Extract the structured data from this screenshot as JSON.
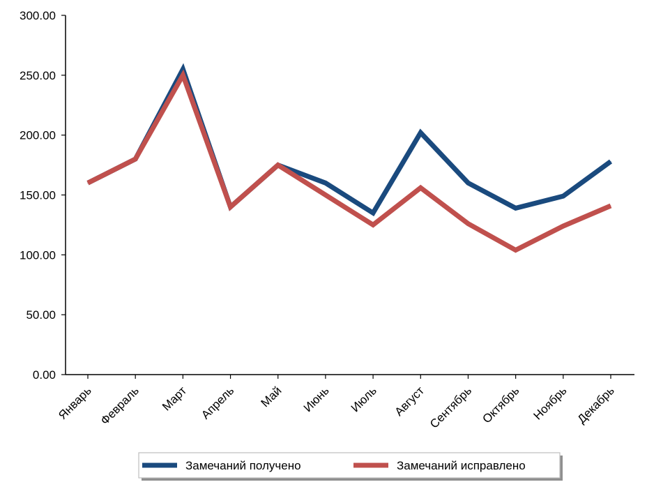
{
  "chart_data": {
    "type": "line",
    "categories": [
      "Январь",
      "Февраль",
      "Март",
      "Апрель",
      "Май",
      "Июнь",
      "Июль",
      "Август",
      "Сентябрь",
      "Октябрь",
      "Ноябрь",
      "Декабрь"
    ],
    "series": [
      {
        "name": "Замечаний получено",
        "color": "#1a4a7e",
        "values": [
          160,
          180,
          255,
          140,
          175,
          160,
          135,
          202,
          160,
          139,
          149,
          178
        ]
      },
      {
        "name": "Замечаний исправлено",
        "color": "#c0504d",
        "values": [
          160,
          180,
          250,
          140,
          175,
          150,
          125,
          156,
          126,
          104,
          124,
          141
        ]
      }
    ],
    "yticks": [
      "0.00",
      "50.00",
      "100.00",
      "150.00",
      "200.00",
      "250.00",
      "300.00"
    ],
    "ylim": [
      0,
      300
    ],
    "grid": false,
    "legend_position": "bottom-center"
  }
}
